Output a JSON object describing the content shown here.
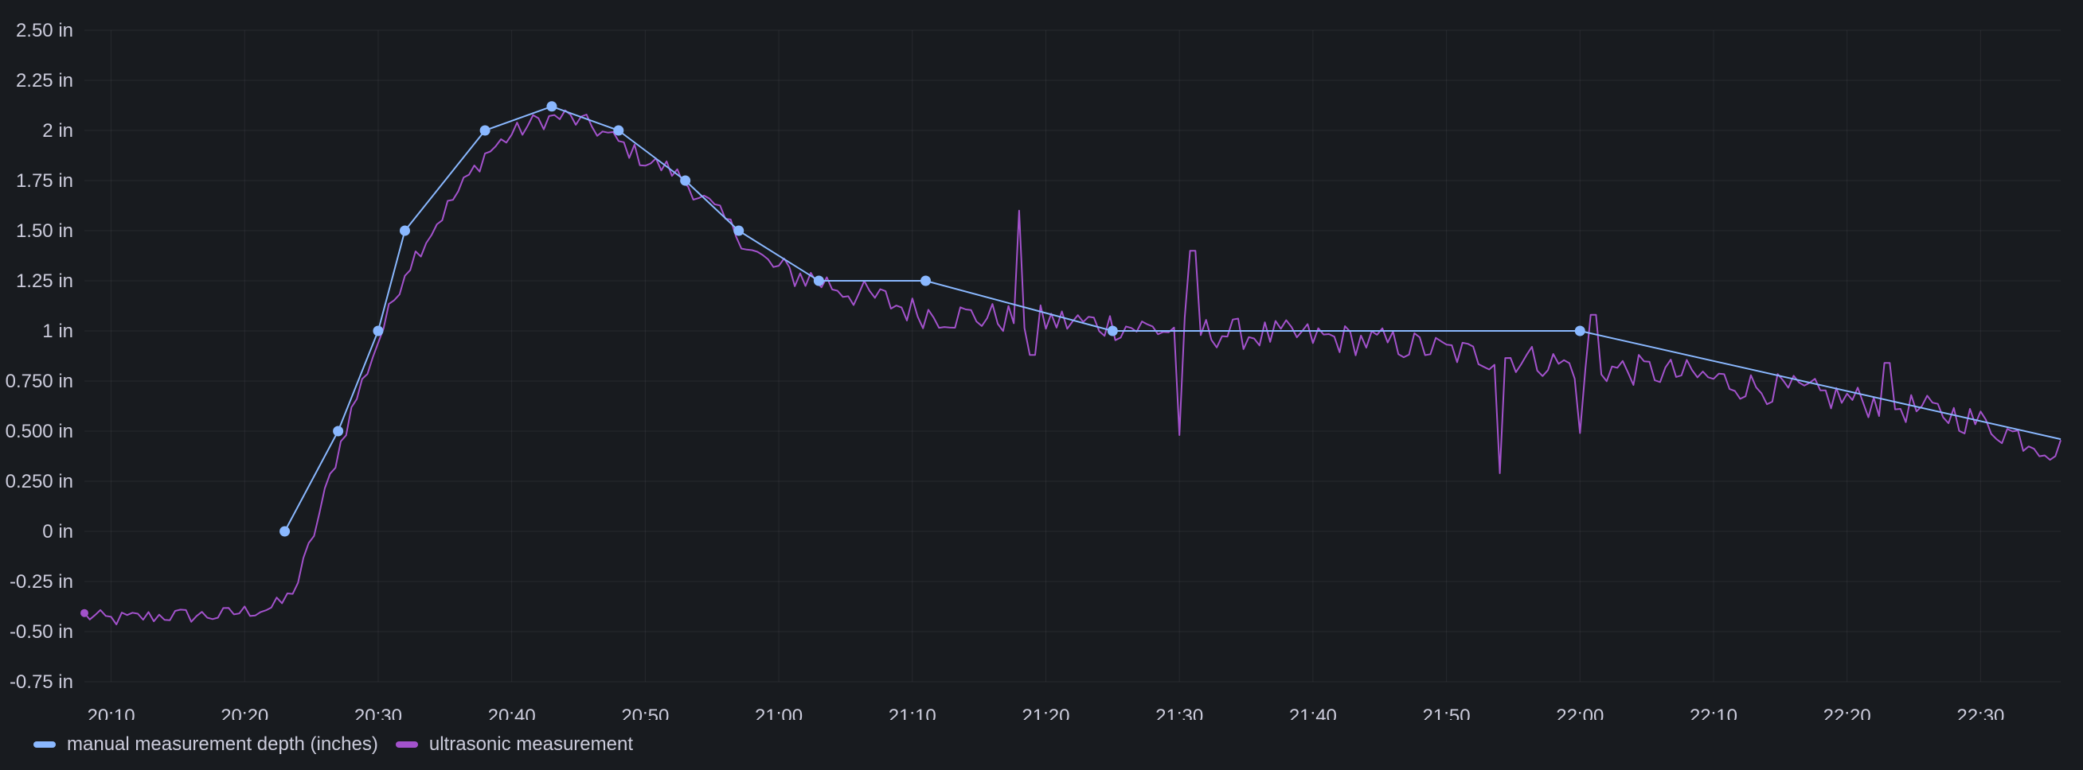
{
  "chart_data": {
    "type": "line",
    "x_axis": {
      "type": "time",
      "range": [
        "20:08",
        "22:36"
      ],
      "tick_labels": [
        "20:10",
        "20:20",
        "20:30",
        "20:40",
        "20:50",
        "21:00",
        "21:10",
        "21:20",
        "21:30",
        "21:40",
        "21:50",
        "22:00",
        "22:10",
        "22:20",
        "22:30"
      ]
    },
    "y_axis": {
      "unit": "in",
      "range": [
        -0.75,
        2.5
      ],
      "ticks": [
        2.5,
        2.25,
        2,
        1.75,
        1.5,
        1.25,
        1,
        0.75,
        0.5,
        0.25,
        0,
        -0.25,
        -0.5,
        -0.75
      ],
      "tick_labels": [
        "2.50 in",
        "2.25 in",
        "2 in",
        "1.75 in",
        "1.50 in",
        "1.25 in",
        "1 in",
        "0.750 in",
        "0.500 in",
        "0.250 in",
        "0 in",
        "-0.25 in",
        "-0.50 in",
        "-0.75 in"
      ]
    },
    "grid": true,
    "legend_position": "bottom-left",
    "series": [
      {
        "name": "manual measurement depth (inches)",
        "color": "#8ab8ff",
        "points_shown": true,
        "x": [
          "20:23",
          "20:27",
          "20:30",
          "20:32",
          "20:38",
          "20:43",
          "20:48",
          "20:53",
          "20:57",
          "21:03",
          "21:11",
          "21:25",
          "22:00",
          "22:36"
        ],
        "y": [
          0,
          0.5,
          1,
          1.5,
          2,
          2.12,
          2,
          1.75,
          1.5,
          1.25,
          1.25,
          1,
          1,
          0.46
        ]
      },
      {
        "name": "ultrasonic measurement",
        "color": "#a352cc",
        "keyframes_x": [
          "20:08",
          "20:10",
          "20:14",
          "20:18",
          "20:22",
          "20:23",
          "20:24",
          "20:25",
          "20:26",
          "20:27",
          "20:28",
          "20:30",
          "20:32",
          "20:35",
          "20:38",
          "20:40",
          "20:42",
          "20:44",
          "20:46",
          "20:48",
          "20:50",
          "20:52",
          "20:54",
          "20:56",
          "20:58",
          "21:00",
          "21:02",
          "21:04",
          "21:06",
          "21:08",
          "21:10",
          "21:12",
          "21:15",
          "21:18",
          "21:20",
          "21:23",
          "21:25",
          "21:28",
          "21:30",
          "21:33",
          "21:36",
          "21:40",
          "21:44",
          "21:48",
          "21:50",
          "21:52",
          "21:54",
          "21:56",
          "21:58",
          "22:00",
          "22:02",
          "22:05",
          "22:08",
          "22:10",
          "22:13",
          "22:16",
          "22:20",
          "22:24",
          "22:28",
          "22:31",
          "22:34",
          "22:36"
        ],
        "keyframes_y": [
          -0.42,
          -0.44,
          -0.42,
          -0.42,
          -0.38,
          -0.35,
          -0.25,
          -0.05,
          0.18,
          0.4,
          0.6,
          0.95,
          1.3,
          1.6,
          1.88,
          1.98,
          2.05,
          2.07,
          2.02,
          1.94,
          1.85,
          1.8,
          1.68,
          1.55,
          1.4,
          1.3,
          1.27,
          1.23,
          1.18,
          1.15,
          1.1,
          1.08,
          1.07,
          1.06,
          1.05,
          1.04,
          1.03,
          1.01,
          1.0,
          0.99,
          0.98,
          0.97,
          0.95,
          0.92,
          0.9,
          0.88,
          0.87,
          0.86,
          0.84,
          0.82,
          0.81,
          0.8,
          0.78,
          0.76,
          0.72,
          0.7,
          0.66,
          0.62,
          0.58,
          0.52,
          0.45,
          0.4
        ],
        "spikes": [
          {
            "x": "21:18",
            "y": 1.6
          },
          {
            "x": "21:19",
            "y": 0.88
          },
          {
            "x": "21:30",
            "y": 0.48
          },
          {
            "x": "21:31",
            "y": 1.4
          },
          {
            "x": "21:54",
            "y": 0.29
          },
          {
            "x": "22:00",
            "y": 0.49
          },
          {
            "x": "22:01",
            "y": 1.08
          },
          {
            "x": "22:23",
            "y": 0.84
          }
        ]
      }
    ]
  },
  "legend": {
    "items": [
      {
        "label": "manual measurement depth (inches)",
        "color": "#8ab8ff"
      },
      {
        "label": "ultrasonic measurement",
        "color": "#a352cc"
      }
    ]
  }
}
